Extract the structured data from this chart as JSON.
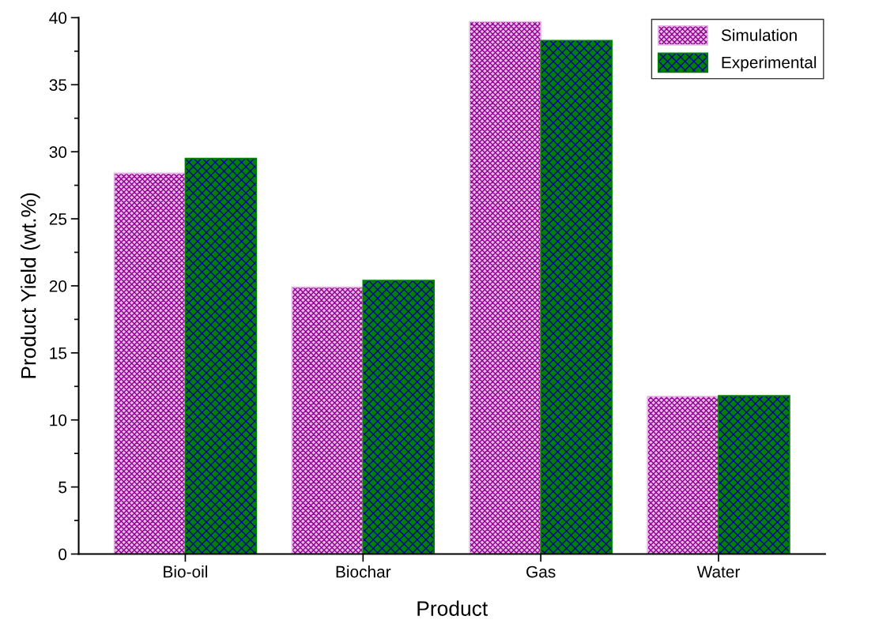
{
  "chart_data": {
    "type": "bar",
    "xlabel": "Product",
    "ylabel": "Product Yield (wt.%)",
    "categories": [
      "Bio-oil",
      "Biochar",
      "Gas",
      "Water"
    ],
    "series": [
      {
        "name": "Simulation",
        "color": "#e6b8e6",
        "values": [
          28.4,
          19.9,
          39.7,
          11.75
        ]
      },
      {
        "name": "Experimental",
        "color": "#008000",
        "values": [
          29.5,
          20.4,
          38.3,
          11.8
        ]
      }
    ],
    "ylim": [
      0,
      40
    ],
    "yticks": [
      0,
      5,
      10,
      15,
      20,
      25,
      30,
      35,
      40
    ],
    "grid": false,
    "legend": "top right"
  }
}
